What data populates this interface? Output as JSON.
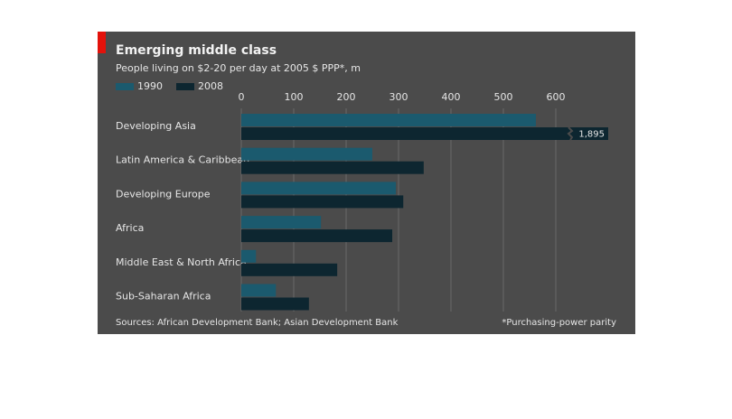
{
  "chart_data": {
    "type": "barh",
    "title": "Emerging middle class",
    "subtitle": "People living on $2-20 per day at 2005 $ PPP*, m",
    "categories": [
      "Developing Asia",
      "Latin America & Caribbean",
      "Developing Europe",
      "Africa",
      "Middle East & North Africa",
      "Sub-Saharan Africa"
    ],
    "series": [
      {
        "name": "1990",
        "color": "#1b5a6e",
        "values": [
          562,
          250,
          295,
          152,
          28,
          66
        ]
      },
      {
        "name": "2008",
        "color": "#0d2630",
        "values": [
          1895,
          348,
          309,
          288,
          183,
          129
        ],
        "value_labels": [
          "1,895",
          null,
          null,
          null,
          null,
          null
        ]
      }
    ],
    "xlim": [
      0,
      700
    ],
    "xticks": [
      0,
      100,
      200,
      300,
      400,
      500,
      600
    ],
    "grid": true,
    "source": "Sources: African Development Bank; Asian Development Bank",
    "footnote": "*Purchasing-power parity"
  }
}
